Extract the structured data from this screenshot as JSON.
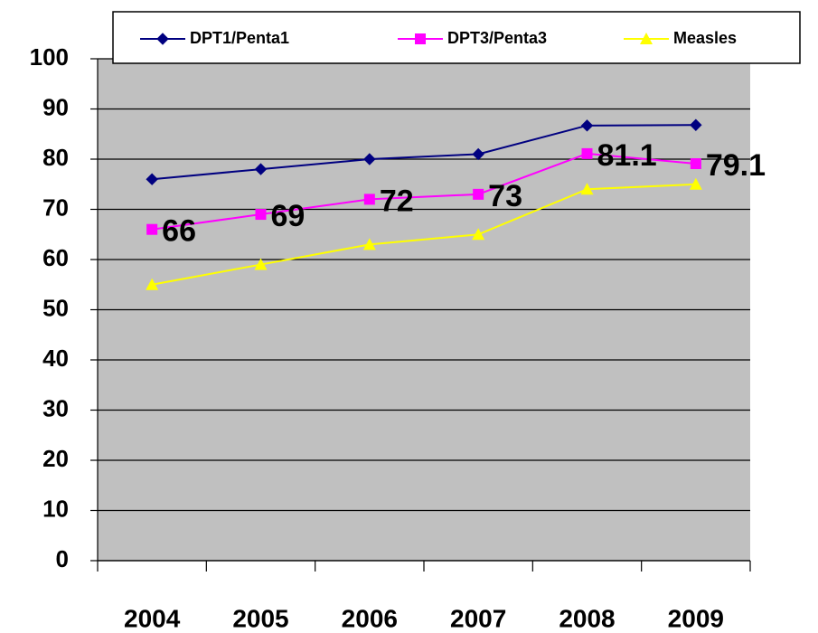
{
  "chart_data": {
    "type": "line",
    "categories": [
      "2004",
      "2005",
      "2006",
      "2007",
      "2008",
      "2009"
    ],
    "series": [
      {
        "name": "DPT1/Penta1",
        "color": "#000080",
        "marker": "diamond",
        "values": [
          76,
          78,
          80,
          81,
          86.7,
          86.8
        ]
      },
      {
        "name": "DPT3/Penta3",
        "color": "#ff00ff",
        "marker": "square",
        "values": [
          66,
          69,
          72,
          73,
          81.1,
          79.1
        ],
        "data_labels": true
      },
      {
        "name": "Measles",
        "color": "#ffff00",
        "marker": "triangle",
        "values": [
          55,
          59,
          63,
          65,
          74,
          75
        ]
      }
    ],
    "ylim": [
      0,
      100
    ],
    "yticks": [
      0,
      10,
      20,
      30,
      40,
      50,
      60,
      70,
      80,
      90,
      100
    ],
    "grid": true,
    "legend": "top"
  }
}
